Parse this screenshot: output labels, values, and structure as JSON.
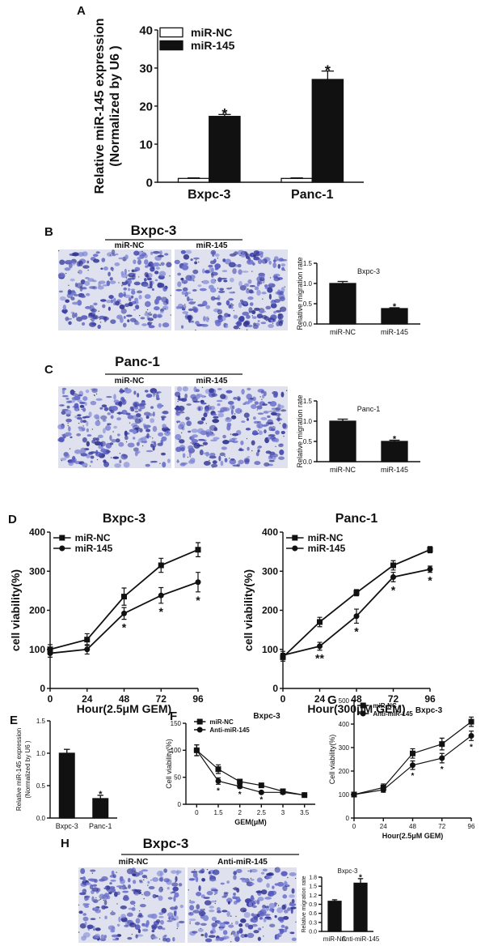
{
  "panel_labels": [
    "A",
    "B",
    "C",
    "D",
    "E",
    "F",
    "G",
    "H"
  ],
  "micrographs": [
    {
      "title": "Bxpc-3",
      "labels": [
        "miR-NC",
        "miR-145"
      ]
    },
    {
      "title": "Panc-1",
      "labels": [
        "miR-NC",
        "miR-145"
      ]
    },
    {
      "title": "Bxpc-3",
      "labels": [
        "miR-NC",
        "Anti-miR-145"
      ]
    }
  ],
  "chart_data": [
    {
      "type": "bar",
      "ylabel": [
        "Relative miR-145 expression",
        "(Normalized by U6 )"
      ],
      "categories": [
        "Bxpc-3",
        "Panc-1"
      ],
      "series": [
        {
          "name": "miR-NC",
          "color": "#ffffff",
          "values": [
            1,
            1
          ],
          "errors": [
            0.15,
            0.15
          ]
        },
        {
          "name": "miR-145",
          "color": "#111111",
          "values": [
            17.3,
            27
          ],
          "errors": [
            0.5,
            2.2
          ],
          "annotations": [
            "*",
            "*"
          ]
        }
      ],
      "ylim": [
        0,
        40
      ],
      "yticks": [
        0,
        10,
        20,
        30,
        40
      ],
      "legend": "upper left"
    },
    {
      "type": "bar",
      "title": "Bxpc-3",
      "ylabel": [
        "Relative migration rate"
      ],
      "categories": [
        "miR-NC",
        "miR-145"
      ],
      "series": [
        {
          "color": "#111111",
          "values": [
            1.0,
            0.38
          ],
          "errors": [
            0.05,
            0.02
          ],
          "annotations": [
            null,
            "*"
          ]
        }
      ],
      "ylim": [
        0,
        1.5
      ],
      "yticks": [
        {
          "value": 0,
          "label": "0.0"
        },
        0.5,
        {
          "value": 1,
          "label": "1.0"
        },
        1.5
      ]
    },
    {
      "type": "bar",
      "title": "Panc-1",
      "ylabel": [
        "Relative migration rate"
      ],
      "categories": [
        "miR-NC",
        "miR-145"
      ],
      "series": [
        {
          "color": "#111111",
          "values": [
            1.0,
            0.5
          ],
          "errors": [
            0.05,
            0.03
          ],
          "annotations": [
            null,
            "*"
          ]
        }
      ],
      "ylim": [
        0,
        1.5
      ],
      "yticks": [
        {
          "value": 0,
          "label": "0.0"
        },
        0.5,
        {
          "value": 1,
          "label": "1.0"
        },
        1.5
      ]
    },
    {
      "type": "line",
      "title": "Bxpc-3",
      "xlabel": "Hour(2.5μM GEM)",
      "ylabel": [
        "cell viability(%)"
      ],
      "x": [
        0,
        24,
        48,
        72,
        96
      ],
      "xlim": [
        0,
        96
      ],
      "xticks": [
        0,
        24,
        48,
        72,
        96
      ],
      "ylim": [
        0,
        400
      ],
      "yticks": [
        0,
        100,
        200,
        300,
        400
      ],
      "legend": "upper left",
      "series": [
        {
          "name": "miR-NC",
          "color": "#111111",
          "marker": "square",
          "values": [
            100,
            125,
            235,
            315,
            355
          ],
          "errors": [
            12,
            15,
            22,
            18,
            18
          ]
        },
        {
          "name": "miR-145",
          "color": "#111111",
          "marker": "circle",
          "values": [
            90,
            100,
            192,
            238,
            272
          ],
          "errors": [
            10,
            12,
            15,
            20,
            25
          ],
          "annotations": [
            null,
            null,
            "*",
            "*",
            "*"
          ]
        }
      ]
    },
    {
      "type": "line",
      "title": "Panc-1",
      "xlabel": "Hour(300μM GEM)",
      "ylabel": [
        "cell viability(%)"
      ],
      "x": [
        0,
        24,
        48,
        72,
        96
      ],
      "xlim": [
        0,
        96
      ],
      "xticks": [
        0,
        24,
        48,
        72,
        96
      ],
      "ylim": [
        0,
        400
      ],
      "yticks": [
        0,
        100,
        200,
        300,
        400
      ],
      "legend": "upper left",
      "series": [
        {
          "name": "miR-NC",
          "color": "#111111",
          "marker": "square",
          "values": [
            80,
            170,
            245,
            315,
            355
          ],
          "errors": [
            10,
            12,
            8,
            12,
            8
          ]
        },
        {
          "name": "miR-145",
          "color": "#111111",
          "marker": "circle",
          "values": [
            85,
            108,
            185,
            285,
            305
          ],
          "errors": [
            10,
            10,
            18,
            12,
            8
          ],
          "annotations": [
            null,
            "**",
            "*",
            "*",
            "*"
          ]
        }
      ]
    },
    {
      "type": "bar",
      "ylabel": [
        "Relative miR-145 expression",
        "(Normalized by U6 )"
      ],
      "categories": [
        "Bxpc-3",
        "Panc-1"
      ],
      "series": [
        {
          "color": "#111111",
          "values": [
            1.0,
            0.3
          ],
          "errors": [
            0.06,
            0.05
          ],
          "annotations": [
            null,
            "*"
          ]
        }
      ],
      "ylim": [
        0,
        1.5
      ],
      "yticks": [
        {
          "value": 0,
          "label": "0.0"
        },
        0.5,
        {
          "value": 1,
          "label": "1.0"
        },
        1.5
      ]
    },
    {
      "type": "line",
      "title": "Bxpc-3",
      "xlabel": "GEM(μM)",
      "ylabel": [
        "Cell viability(%)"
      ],
      "categories": [
        "0",
        "1.5",
        "2",
        "2.5",
        "3",
        "3.5"
      ],
      "ylim": [
        0,
        150
      ],
      "yticks": [
        0,
        50,
        100,
        150
      ],
      "legend": "upper left",
      "series": [
        {
          "name": "miR-NC",
          "color": "#111111",
          "marker": "square",
          "values": [
            100,
            65,
            42,
            35,
            24,
            17
          ],
          "errors": [
            10,
            8,
            4,
            3,
            3,
            3
          ]
        },
        {
          "name": "Anti-miR-145",
          "color": "#111111",
          "marker": "circle",
          "values": [
            100,
            43,
            33,
            22,
            22,
            17
          ],
          "errors": [
            10,
            6,
            3,
            2,
            3,
            3
          ],
          "annotations": [
            null,
            "*",
            "*",
            "*",
            null,
            null
          ]
        }
      ]
    },
    {
      "type": "line",
      "title": "Bxpc-3",
      "xlabel": "Hour(2.5μM GEM)",
      "ylabel": [
        "Cell viability(%)"
      ],
      "x": [
        0,
        24,
        48,
        72,
        96
      ],
      "xlim": [
        0,
        96
      ],
      "xticks": [
        0,
        24,
        48,
        72,
        96
      ],
      "ylim": [
        0,
        500
      ],
      "yticks": [
        0,
        100,
        200,
        300,
        400,
        500
      ],
      "legend": "upper left",
      "series": [
        {
          "name": "miR-NC",
          "color": "#111111",
          "marker": "square",
          "values": [
            100,
            130,
            275,
            315,
            410
          ],
          "errors": [
            5,
            15,
            20,
            25,
            20
          ]
        },
        {
          "name": "Anti-miR-145",
          "color": "#111111",
          "marker": "circle",
          "values": [
            100,
            120,
            225,
            255,
            350
          ],
          "errors": [
            5,
            10,
            18,
            20,
            20
          ],
          "annotations": [
            null,
            null,
            "*",
            "*",
            "*"
          ]
        }
      ]
    },
    {
      "type": "bar",
      "title": "Bxpc-3",
      "ylabel": [
        "Relative migration rate"
      ],
      "categories": [
        "miR-NC",
        "Anti-miR-145"
      ],
      "series": [
        {
          "color": "#111111",
          "values": [
            1.0,
            1.6
          ],
          "errors": [
            0.05,
            0.15
          ],
          "annotations": [
            null,
            "*"
          ]
        }
      ],
      "ylim": [
        0,
        1.8
      ],
      "yticks": [
        {
          "value": 0,
          "label": "0.0"
        },
        0.3,
        0.6,
        0.9,
        1.2,
        1.5,
        1.8
      ]
    }
  ]
}
